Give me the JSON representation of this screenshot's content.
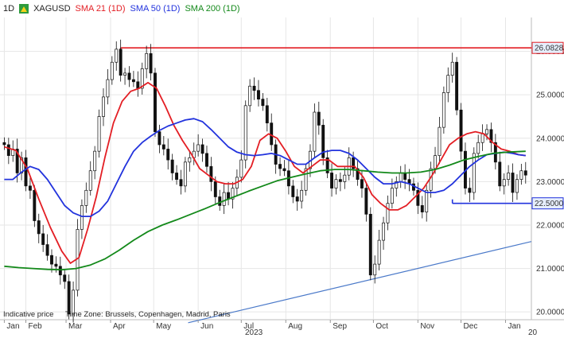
{
  "header": {
    "interval": "1D",
    "symbol": "XAGUSD",
    "legend": [
      {
        "label": "SMA 21 (1D)",
        "color": "#e31e24"
      },
      {
        "label": "SMA 50 (1D)",
        "color": "#2233dd"
      },
      {
        "label": "SMA 200 (1D)",
        "color": "#13891a"
      }
    ]
  },
  "footer": {
    "indicative": "Indicative price",
    "timezone": "Time Zone: Brussels, Copenhagen, Madrid, Paris",
    "year": "2023",
    "next_year_partial": "20"
  },
  "chart_data": {
    "type": "line",
    "y_ticks": [
      "26.0000",
      "25.0000",
      "24.0000",
      "23.0000",
      "22.0000",
      "21.0000",
      "20.0000"
    ],
    "ylim": [
      19.82,
      26.78
    ],
    "x_ticks": [
      {
        "label": "Jan",
        "day": 0
      },
      {
        "label": "Feb",
        "day": 15
      },
      {
        "label": "Mar",
        "day": 43
      },
      {
        "label": "Apr",
        "day": 74
      },
      {
        "label": "May",
        "day": 104
      },
      {
        "label": "Jun",
        "day": 135
      },
      {
        "label": "Jul",
        "day": 165
      },
      {
        "label": "Aug",
        "day": 196
      },
      {
        "label": "Sep",
        "day": 227
      },
      {
        "label": "Oct",
        "day": 257
      },
      {
        "label": "Nov",
        "day": 288
      },
      {
        "label": "Dec",
        "day": 318
      },
      {
        "label": "Jan",
        "day": 349
      }
    ],
    "xlim": [
      -3,
      367
    ],
    "price_tags": [
      {
        "label": "26.0828",
        "value": 26.08,
        "color": "#e31e24"
      },
      {
        "label": "22.5000",
        "value": 22.5,
        "color": "#2233dd"
      }
    ],
    "resistance_line": {
      "from_day": 81,
      "to_day": 367,
      "value": 26.08,
      "color": "#e31e24"
    },
    "support_line": {
      "from_day": 312,
      "to_day": 367,
      "value": 22.5,
      "color": "#2233dd"
    },
    "trend_line": {
      "points": [
        [
          128,
          19.75
        ],
        [
          367,
          21.62
        ]
      ],
      "color": "#4a79c9"
    },
    "series": [
      {
        "name": "XAGUSD",
        "color": "#111111",
        "points": [
          [
            0,
            23.85
          ],
          [
            3,
            23.6
          ],
          [
            6,
            23.75
          ],
          [
            9,
            23.2
          ],
          [
            12,
            23.55
          ],
          [
            15,
            22.9
          ],
          [
            18,
            22.8
          ],
          [
            21,
            22.1
          ],
          [
            24,
            21.8
          ],
          [
            27,
            21.55
          ],
          [
            30,
            21.3
          ],
          [
            33,
            21.1
          ],
          [
            36,
            21.05
          ],
          [
            39,
            20.85
          ],
          [
            42,
            20.7
          ],
          [
            45,
            19.95
          ],
          [
            48,
            20.5
          ],
          [
            51,
            21.9
          ],
          [
            54,
            22.45
          ],
          [
            57,
            22.8
          ],
          [
            60,
            23.25
          ],
          [
            63,
            23.7
          ],
          [
            66,
            24.5
          ],
          [
            69,
            24.95
          ],
          [
            72,
            25.35
          ],
          [
            75,
            25.75
          ],
          [
            78,
            26.05
          ],
          [
            81,
            25.45
          ],
          [
            84,
            25.5
          ],
          [
            87,
            25.35
          ],
          [
            90,
            25.3
          ],
          [
            93,
            25.15
          ],
          [
            96,
            25.6
          ],
          [
            99,
            25.95
          ],
          [
            102,
            25.5
          ],
          [
            105,
            24.15
          ],
          [
            108,
            23.85
          ],
          [
            111,
            23.75
          ],
          [
            114,
            23.5
          ],
          [
            117,
            23.2
          ],
          [
            120,
            23.05
          ],
          [
            123,
            22.9
          ],
          [
            126,
            23.45
          ],
          [
            129,
            23.55
          ],
          [
            132,
            23.7
          ],
          [
            135,
            23.85
          ],
          [
            138,
            23.65
          ],
          [
            141,
            23.35
          ],
          [
            144,
            23.0
          ],
          [
            147,
            22.65
          ],
          [
            150,
            22.45
          ],
          [
            153,
            22.75
          ],
          [
            156,
            22.6
          ],
          [
            159,
            22.85
          ],
          [
            162,
            23.1
          ],
          [
            165,
            23.5
          ],
          [
            168,
            24.75
          ],
          [
            171,
            25.2
          ],
          [
            174,
            25.1
          ],
          [
            177,
            24.9
          ],
          [
            180,
            24.75
          ],
          [
            183,
            24.35
          ],
          [
            186,
            23.85
          ],
          [
            189,
            23.4
          ],
          [
            192,
            23.3
          ],
          [
            195,
            23.25
          ],
          [
            198,
            22.9
          ],
          [
            201,
            22.65
          ],
          [
            204,
            22.55
          ],
          [
            207,
            22.8
          ],
          [
            210,
            23.3
          ],
          [
            213,
            23.7
          ],
          [
            216,
            24.6
          ],
          [
            219,
            24.3
          ],
          [
            222,
            23.55
          ],
          [
            225,
            23.2
          ],
          [
            228,
            22.85
          ],
          [
            231,
            23.05
          ],
          [
            234,
            23.0
          ],
          [
            237,
            23.15
          ],
          [
            240,
            23.55
          ],
          [
            243,
            23.3
          ],
          [
            246,
            23.05
          ],
          [
            249,
            22.85
          ],
          [
            252,
            22.25
          ],
          [
            255,
            20.85
          ],
          [
            258,
            21.1
          ],
          [
            261,
            21.65
          ],
          [
            264,
            22.05
          ],
          [
            267,
            22.5
          ],
          [
            270,
            22.85
          ],
          [
            273,
            23.0
          ],
          [
            276,
            23.2
          ],
          [
            279,
            23.05
          ],
          [
            282,
            22.95
          ],
          [
            285,
            22.8
          ],
          [
            288,
            22.45
          ],
          [
            291,
            22.3
          ],
          [
            294,
            22.8
          ],
          [
            297,
            23.3
          ],
          [
            300,
            23.6
          ],
          [
            303,
            24.25
          ],
          [
            306,
            25.05
          ],
          [
            309,
            25.45
          ],
          [
            312,
            25.75
          ],
          [
            315,
            24.65
          ],
          [
            318,
            23.7
          ],
          [
            321,
            22.85
          ],
          [
            324,
            22.75
          ],
          [
            327,
            23.65
          ],
          [
            330,
            23.9
          ],
          [
            333,
            24.1
          ],
          [
            336,
            24.2
          ],
          [
            339,
            23.9
          ],
          [
            342,
            23.45
          ],
          [
            345,
            22.9
          ],
          [
            348,
            23.05
          ],
          [
            351,
            23.2
          ],
          [
            354,
            22.75
          ],
          [
            357,
            23.05
          ],
          [
            360,
            23.25
          ],
          [
            363,
            23.15
          ]
        ]
      },
      {
        "name": "SMA 21 (1D)",
        "color": "#e31e24",
        "points": [
          [
            0,
            23.8
          ],
          [
            8,
            23.72
          ],
          [
            16,
            23.3
          ],
          [
            24,
            22.6
          ],
          [
            32,
            21.95
          ],
          [
            40,
            21.4
          ],
          [
            46,
            21.12
          ],
          [
            52,
            21.25
          ],
          [
            58,
            21.9
          ],
          [
            64,
            22.65
          ],
          [
            70,
            23.55
          ],
          [
            76,
            24.35
          ],
          [
            82,
            24.85
          ],
          [
            88,
            25.08
          ],
          [
            94,
            25.15
          ],
          [
            100,
            25.28
          ],
          [
            106,
            25.15
          ],
          [
            112,
            24.75
          ],
          [
            118,
            24.3
          ],
          [
            124,
            23.95
          ],
          [
            130,
            23.65
          ],
          [
            136,
            23.3
          ],
          [
            142,
            23.15
          ],
          [
            148,
            23.0
          ],
          [
            154,
            22.95
          ],
          [
            160,
            22.95
          ],
          [
            166,
            23.05
          ],
          [
            172,
            23.35
          ],
          [
            178,
            23.95
          ],
          [
            184,
            24.1
          ],
          [
            190,
            24.0
          ],
          [
            196,
            23.7
          ],
          [
            202,
            23.35
          ],
          [
            208,
            23.2
          ],
          [
            214,
            23.35
          ],
          [
            220,
            23.5
          ],
          [
            226,
            23.5
          ],
          [
            232,
            23.35
          ],
          [
            238,
            23.35
          ],
          [
            244,
            23.35
          ],
          [
            250,
            23.1
          ],
          [
            256,
            22.7
          ],
          [
            262,
            22.5
          ],
          [
            268,
            22.35
          ],
          [
            274,
            22.35
          ],
          [
            280,
            22.45
          ],
          [
            286,
            22.65
          ],
          [
            292,
            22.85
          ],
          [
            298,
            23.15
          ],
          [
            304,
            23.5
          ],
          [
            310,
            23.85
          ],
          [
            316,
            24.0
          ],
          [
            322,
            24.1
          ],
          [
            328,
            24.15
          ],
          [
            334,
            24.1
          ],
          [
            340,
            23.9
          ],
          [
            346,
            23.75
          ],
          [
            352,
            23.7
          ],
          [
            358,
            23.62
          ],
          [
            363,
            23.6
          ]
        ]
      },
      {
        "name": "SMA 50 (1D)",
        "color": "#2233dd",
        "points": [
          [
            0,
            23.05
          ],
          [
            6,
            23.05
          ],
          [
            12,
            23.22
          ],
          [
            18,
            23.35
          ],
          [
            24,
            23.28
          ],
          [
            30,
            23.05
          ],
          [
            36,
            22.75
          ],
          [
            42,
            22.45
          ],
          [
            48,
            22.28
          ],
          [
            54,
            22.2
          ],
          [
            60,
            22.2
          ],
          [
            66,
            22.32
          ],
          [
            72,
            22.55
          ],
          [
            78,
            22.95
          ],
          [
            84,
            23.35
          ],
          [
            90,
            23.7
          ],
          [
            96,
            23.9
          ],
          [
            102,
            24.05
          ],
          [
            108,
            24.18
          ],
          [
            114,
            24.28
          ],
          [
            120,
            24.35
          ],
          [
            126,
            24.42
          ],
          [
            132,
            24.45
          ],
          [
            138,
            24.38
          ],
          [
            144,
            24.2
          ],
          [
            150,
            24.0
          ],
          [
            156,
            23.8
          ],
          [
            162,
            23.68
          ],
          [
            168,
            23.62
          ],
          [
            174,
            23.6
          ],
          [
            180,
            23.62
          ],
          [
            186,
            23.65
          ],
          [
            192,
            23.6
          ],
          [
            198,
            23.5
          ],
          [
            204,
            23.4
          ],
          [
            210,
            23.4
          ],
          [
            216,
            23.55
          ],
          [
            222,
            23.68
          ],
          [
            228,
            23.72
          ],
          [
            234,
            23.72
          ],
          [
            240,
            23.65
          ],
          [
            246,
            23.5
          ],
          [
            252,
            23.3
          ],
          [
            258,
            23.1
          ],
          [
            264,
            22.95
          ],
          [
            270,
            22.95
          ],
          [
            276,
            23.0
          ],
          [
            282,
            22.95
          ],
          [
            288,
            22.85
          ],
          [
            294,
            22.75
          ],
          [
            300,
            22.75
          ],
          [
            306,
            22.8
          ],
          [
            312,
            22.95
          ],
          [
            318,
            23.15
          ],
          [
            324,
            23.35
          ],
          [
            330,
            23.5
          ],
          [
            336,
            23.62
          ],
          [
            342,
            23.65
          ],
          [
            348,
            23.68
          ],
          [
            354,
            23.65
          ],
          [
            358,
            23.62
          ],
          [
            363,
            23.6
          ]
        ]
      },
      {
        "name": "SMA 200 (1D)",
        "color": "#13891a",
        "points": [
          [
            0,
            21.05
          ],
          [
            10,
            21.02
          ],
          [
            20,
            21.0
          ],
          [
            30,
            20.98
          ],
          [
            40,
            20.97
          ],
          [
            50,
            21.0
          ],
          [
            60,
            21.08
          ],
          [
            70,
            21.22
          ],
          [
            80,
            21.42
          ],
          [
            90,
            21.65
          ],
          [
            100,
            21.85
          ],
          [
            110,
            22.0
          ],
          [
            120,
            22.12
          ],
          [
            130,
            22.25
          ],
          [
            140,
            22.38
          ],
          [
            150,
            22.52
          ],
          [
            160,
            22.65
          ],
          [
            170,
            22.78
          ],
          [
            180,
            22.9
          ],
          [
            190,
            23.02
          ],
          [
            200,
            23.1
          ],
          [
            210,
            23.18
          ],
          [
            220,
            23.25
          ],
          [
            230,
            23.28
          ],
          [
            240,
            23.28
          ],
          [
            250,
            23.25
          ],
          [
            260,
            23.22
          ],
          [
            270,
            23.2
          ],
          [
            280,
            23.2
          ],
          [
            290,
            23.22
          ],
          [
            300,
            23.28
          ],
          [
            310,
            23.38
          ],
          [
            320,
            23.5
          ],
          [
            330,
            23.58
          ],
          [
            340,
            23.65
          ],
          [
            350,
            23.68
          ],
          [
            363,
            23.7
          ]
        ]
      }
    ]
  }
}
